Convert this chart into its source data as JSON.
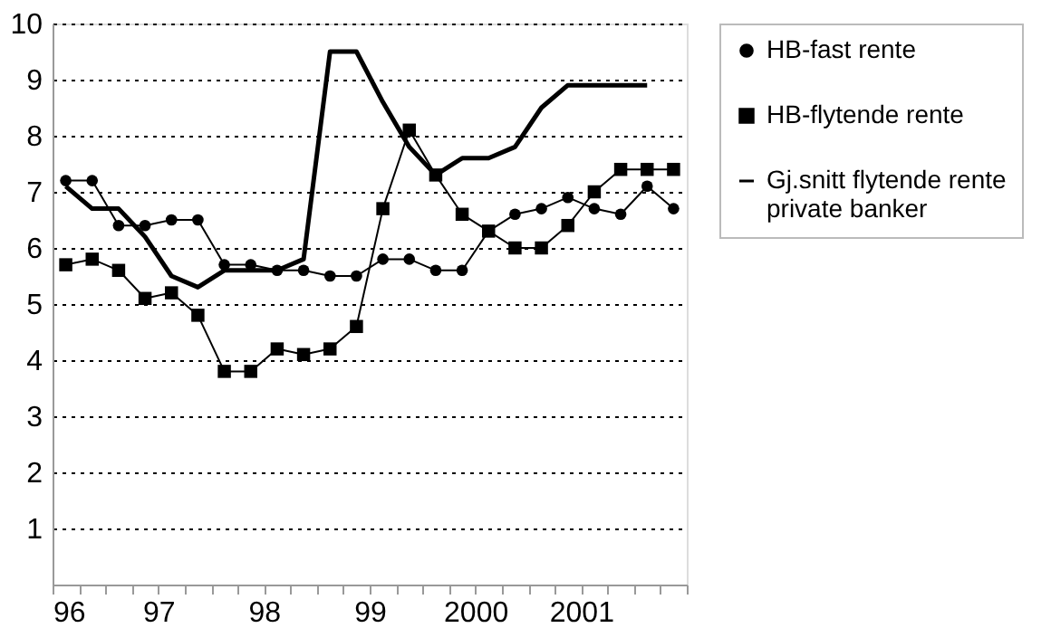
{
  "chart_data": {
    "type": "line",
    "x": [
      1996.125,
      1996.375,
      1996.625,
      1996.875,
      1997.125,
      1997.375,
      1997.625,
      1997.875,
      1998.125,
      1998.375,
      1998.625,
      1998.875,
      1999.125,
      1999.375,
      1999.625,
      1999.875,
      2000.125,
      2000.375,
      2000.625,
      2000.875,
      2001.125,
      2001.375,
      2001.625,
      2001.875
    ],
    "series": [
      {
        "name": "HB-fast rente",
        "color": "#000000",
        "marker": "circle",
        "values": [
          7.2,
          7.2,
          6.4,
          6.4,
          6.5,
          6.5,
          5.7,
          5.7,
          5.6,
          5.6,
          5.5,
          5.5,
          5.8,
          5.8,
          5.6,
          5.6,
          6.3,
          6.6,
          6.7,
          6.9,
          6.7,
          6.6,
          7.1,
          6.7
        ]
      },
      {
        "name": "HB-flytende rente",
        "color": "#000000",
        "marker": "square",
        "values": [
          5.7,
          5.8,
          5.6,
          5.1,
          5.2,
          4.8,
          3.8,
          3.8,
          4.2,
          4.1,
          4.2,
          4.6,
          6.7,
          8.1,
          7.3,
          6.6,
          6.3,
          6.0,
          6.0,
          6.4,
          7.0,
          7.4,
          7.4,
          7.4
        ]
      },
      {
        "name": "Gj.snitt flytende rente private banker",
        "color": "#000000",
        "marker": "none",
        "values": [
          7.1,
          6.7,
          6.7,
          6.2,
          5.5,
          5.3,
          5.6,
          5.6,
          5.6,
          5.8,
          9.5,
          9.5,
          8.6,
          7.8,
          7.3,
          7.6,
          7.6,
          7.8,
          8.5,
          8.9,
          8.9,
          8.9,
          8.9,
          null
        ]
      }
    ],
    "xlim": [
      1996,
      2002
    ],
    "xticks": [
      {
        "value": 1996,
        "label": "96"
      },
      {
        "value": 1996.25,
        "label": null
      },
      {
        "value": 1996.5,
        "label": null
      },
      {
        "value": 1996.75,
        "label": null
      },
      {
        "value": 1997,
        "label": "97"
      },
      {
        "value": 1997.25,
        "label": null
      },
      {
        "value": 1997.5,
        "label": null
      },
      {
        "value": 1997.75,
        "label": null
      },
      {
        "value": 1998,
        "label": "98"
      },
      {
        "value": 1998.25,
        "label": null
      },
      {
        "value": 1998.5,
        "label": null
      },
      {
        "value": 1998.75,
        "label": null
      },
      {
        "value": 1999,
        "label": "99"
      },
      {
        "value": 1999.25,
        "label": null
      },
      {
        "value": 1999.5,
        "label": null
      },
      {
        "value": 1999.75,
        "label": null
      },
      {
        "value": 2000,
        "label": "2000"
      },
      {
        "value": 2000.25,
        "label": null
      },
      {
        "value": 2000.5,
        "label": null
      },
      {
        "value": 2000.75,
        "label": null
      },
      {
        "value": 2001,
        "label": "2001"
      },
      {
        "value": 2001.25,
        "label": null
      },
      {
        "value": 2001.5,
        "label": null
      },
      {
        "value": 2001.75,
        "label": null
      },
      {
        "value": 2002,
        "label": null
      }
    ],
    "ylim": [
      0,
      10
    ],
    "yticks": [
      {
        "value": 0,
        "label": null
      },
      1,
      2,
      3,
      4,
      5,
      6,
      7,
      8,
      9,
      10
    ],
    "grid": "y",
    "legend": "right",
    "line_style": "solid"
  }
}
